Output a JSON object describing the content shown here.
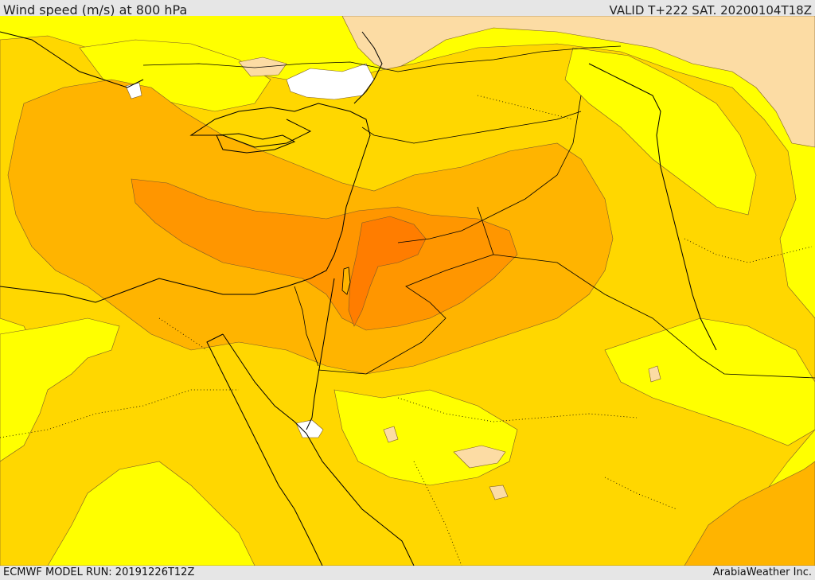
{
  "header": {
    "title": "Wind speed (m/s) at 800 hPa",
    "valid": "VALID T+222 SAT. 20200104T18Z"
  },
  "footer": {
    "model_run": "ECMWF MODEL RUN: 20191226T12Z",
    "credit": "ArabiaWeather Inc."
  },
  "colors": {
    "weakest": "#ffffff",
    "very_light": "#fcdca4",
    "light": "#ffff00",
    "moderate": "#ffd700",
    "fresh": "#ffb400",
    "strong": "#ff9600",
    "strongest": "#ff7d00",
    "coastline": "#000000",
    "contour": "#7a5a2a"
  }
}
